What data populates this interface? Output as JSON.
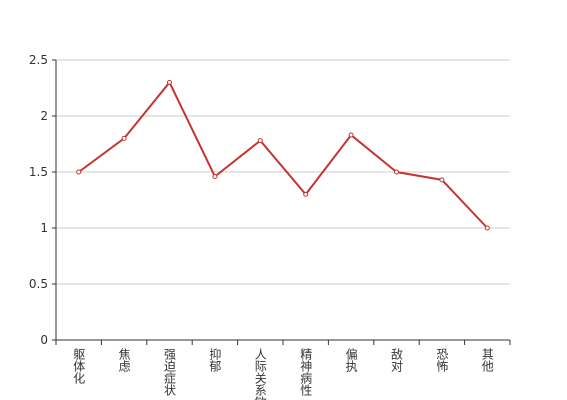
{
  "chart_data": {
    "type": "line",
    "categories": [
      "躯体化",
      "焦虑",
      "强迫症状",
      "抑郁",
      "人际关系敏感",
      "精神病性",
      "偏执",
      "敌对",
      "恐怖",
      "其他"
    ],
    "series": [
      {
        "color": "#c23531",
        "values": [
          1.5,
          1.8,
          2.3,
          1.46,
          1.78,
          1.3,
          1.83,
          1.5,
          1.43,
          1.0
        ]
      }
    ],
    "ylim": [
      0,
      2.5
    ],
    "yticks": [
      0,
      0.5,
      1,
      1.5,
      2,
      2.5
    ],
    "grid": true
  }
}
